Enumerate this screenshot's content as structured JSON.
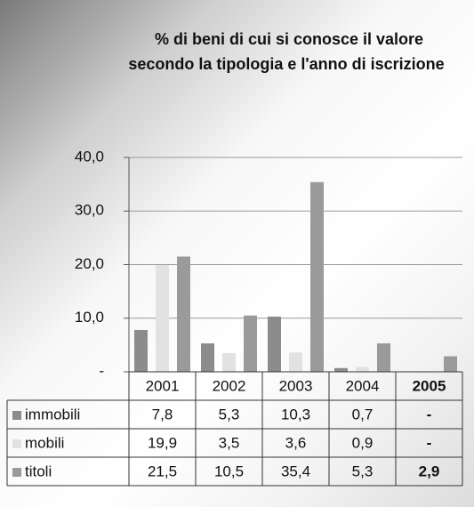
{
  "chart_data": {
    "type": "bar",
    "title": [
      "% di beni di cui si conosce il valore",
      "secondo la tipologia e l'anno di iscrizione"
    ],
    "categories": [
      "2001",
      "2002",
      "2003",
      "2004",
      "2005"
    ],
    "series": [
      {
        "name": "immobili",
        "color": "#8c8c8c",
        "values": [
          7.8,
          5.3,
          10.3,
          0.7,
          null
        ],
        "value_labels": [
          "7,8",
          "5,3",
          "10,3",
          "0,7",
          "-"
        ]
      },
      {
        "name": "mobili",
        "color": "#e2e2e2",
        "values": [
          19.9,
          3.5,
          3.6,
          0.9,
          null
        ],
        "value_labels": [
          "19,9",
          "3,5",
          "3,6",
          "0,9",
          "-"
        ]
      },
      {
        "name": "titoli",
        "color": "#9a9a9a",
        "values": [
          21.5,
          10.5,
          35.4,
          5.3,
          2.9
        ],
        "value_labels": [
          "21,5",
          "10,5",
          "35,4",
          "5,3",
          "2,9"
        ]
      }
    ],
    "ylim": [
      0,
      40
    ],
    "yticks": [
      {
        "value": 0,
        "label": "-"
      },
      {
        "value": 10,
        "label": "10,0"
      },
      {
        "value": 20,
        "label": "20,0"
      },
      {
        "value": 30,
        "label": "30,0"
      },
      {
        "value": 40,
        "label": "40,0"
      }
    ],
    "grid": true
  }
}
